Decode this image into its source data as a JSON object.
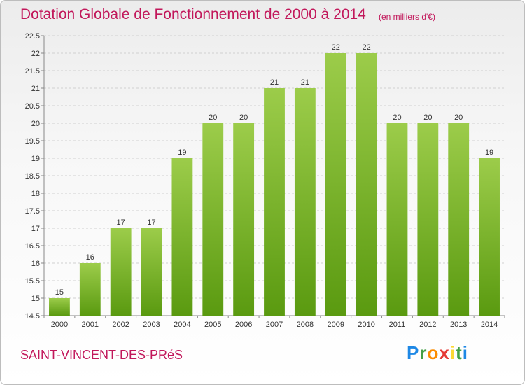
{
  "header": {
    "title": "Dotation Globale de Fonctionnement de 2000 à 2014",
    "unit": "(en milliers d'€)"
  },
  "footer": {
    "commune": "SAINT-VINCENT-DES-PRéS",
    "logo_text": "Proxiti"
  },
  "colors": {
    "bar_top": "#9ccc4a",
    "bar_bottom": "#5a9a10",
    "title": "#c2185b",
    "grid": "#d0d0d0"
  },
  "chart_data": {
    "type": "bar",
    "categories": [
      "2000",
      "2001",
      "2002",
      "2003",
      "2004",
      "2005",
      "2006",
      "2007",
      "2008",
      "2009",
      "2010",
      "2011",
      "2012",
      "2013",
      "2014"
    ],
    "values": [
      15,
      16,
      17,
      17,
      19,
      20,
      20,
      21,
      21,
      22,
      22,
      20,
      20,
      20,
      19
    ],
    "data_labels": [
      "15",
      "16",
      "17",
      "17",
      "19",
      "20",
      "20",
      "21",
      "21",
      "22",
      "22",
      "20",
      "20",
      "20",
      "19"
    ],
    "ylim": [
      14.5,
      22.5
    ],
    "yticks": [
      14.5,
      15,
      15.5,
      16,
      16.5,
      17,
      17.5,
      18,
      18.5,
      19,
      19.5,
      20,
      20.5,
      21,
      21.5,
      22,
      22.5
    ],
    "title": "Dotation Globale de Fonctionnement de 2000 à 2014",
    "xlabel": "",
    "ylabel": "",
    "grid": true
  }
}
